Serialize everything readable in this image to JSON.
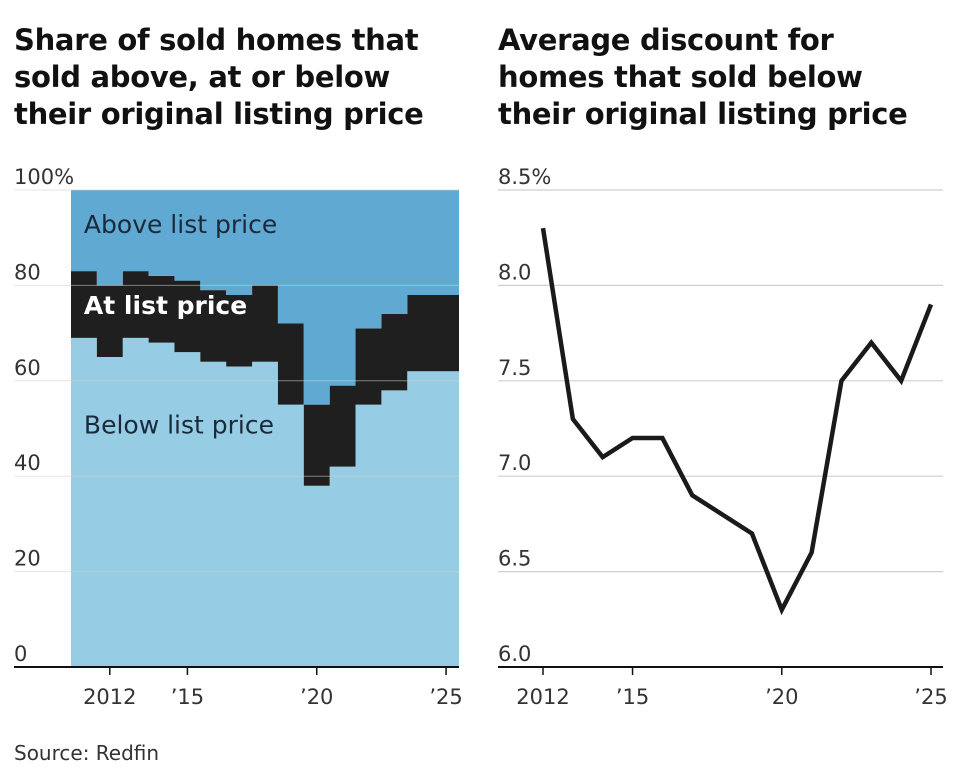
{
  "source": "Source: Redfin",
  "chart_data": [
    {
      "type": "area",
      "stacking": "stacked-100",
      "title": "Share of sold homes that sold above, at or below their original listing price",
      "ylim": [
        0,
        100
      ],
      "yticks": [
        0,
        20,
        40,
        60,
        80,
        100
      ],
      "ytick_labels": [
        "0",
        "20",
        "40",
        "60",
        "80",
        "100%"
      ],
      "xticks": [
        2012,
        2015,
        2020,
        2025
      ],
      "xtick_labels": [
        "2012",
        "’15",
        "’20",
        "’25"
      ],
      "x": [
        2011,
        2012,
        2013,
        2014,
        2015,
        2016,
        2017,
        2018,
        2019,
        2020,
        2021,
        2022,
        2023,
        2024,
        2025
      ],
      "series": [
        {
          "name": "Below list price",
          "color": "#97cde4",
          "values": [
            69,
            65,
            69,
            68,
            66,
            64,
            63,
            64,
            55,
            38,
            42,
            55,
            58,
            62,
            62
          ]
        },
        {
          "name": "At list price",
          "color": "#1f1f1f",
          "values": [
            14,
            15,
            14,
            14,
            15,
            15,
            15,
            16,
            17,
            17,
            17,
            16,
            16,
            16,
            16
          ]
        },
        {
          "name": "Above list price",
          "color": "#60a9d3",
          "values": [
            17,
            20,
            17,
            18,
            19,
            21,
            22,
            20,
            28,
            45,
            41,
            29,
            26,
            22,
            22
          ]
        }
      ],
      "labels": [
        {
          "text": "Above list price",
          "year": 2011.2,
          "value": 91
        },
        {
          "text": "At list price",
          "year": 2011.2,
          "value": 74
        },
        {
          "text": "Below list price",
          "year": 2011.2,
          "value": 49
        }
      ]
    },
    {
      "type": "line",
      "title": "Average discount for homes that sold below their original listing price",
      "ylim": [
        6.0,
        8.5
      ],
      "yticks": [
        6.0,
        6.5,
        7.0,
        7.5,
        8.0,
        8.5
      ],
      "ytick_labels": [
        "6.0",
        "6.5",
        "7.0",
        "7.5",
        "8.0",
        "8.5%"
      ],
      "xticks": [
        2012,
        2015,
        2020,
        2025
      ],
      "xtick_labels": [
        "2012",
        "’15",
        "’20",
        "’25"
      ],
      "x": [
        2012,
        2013,
        2014,
        2015,
        2016,
        2017,
        2018,
        2019,
        2020,
        2021,
        2022,
        2023,
        2024,
        2025
      ],
      "series": [
        {
          "name": "Average discount",
          "color": "#1a1a1a",
          "values": [
            8.3,
            7.3,
            7.1,
            7.2,
            7.2,
            6.9,
            6.8,
            6.7,
            6.3,
            6.6,
            7.5,
            7.7,
            7.5,
            7.9
          ]
        }
      ]
    }
  ]
}
